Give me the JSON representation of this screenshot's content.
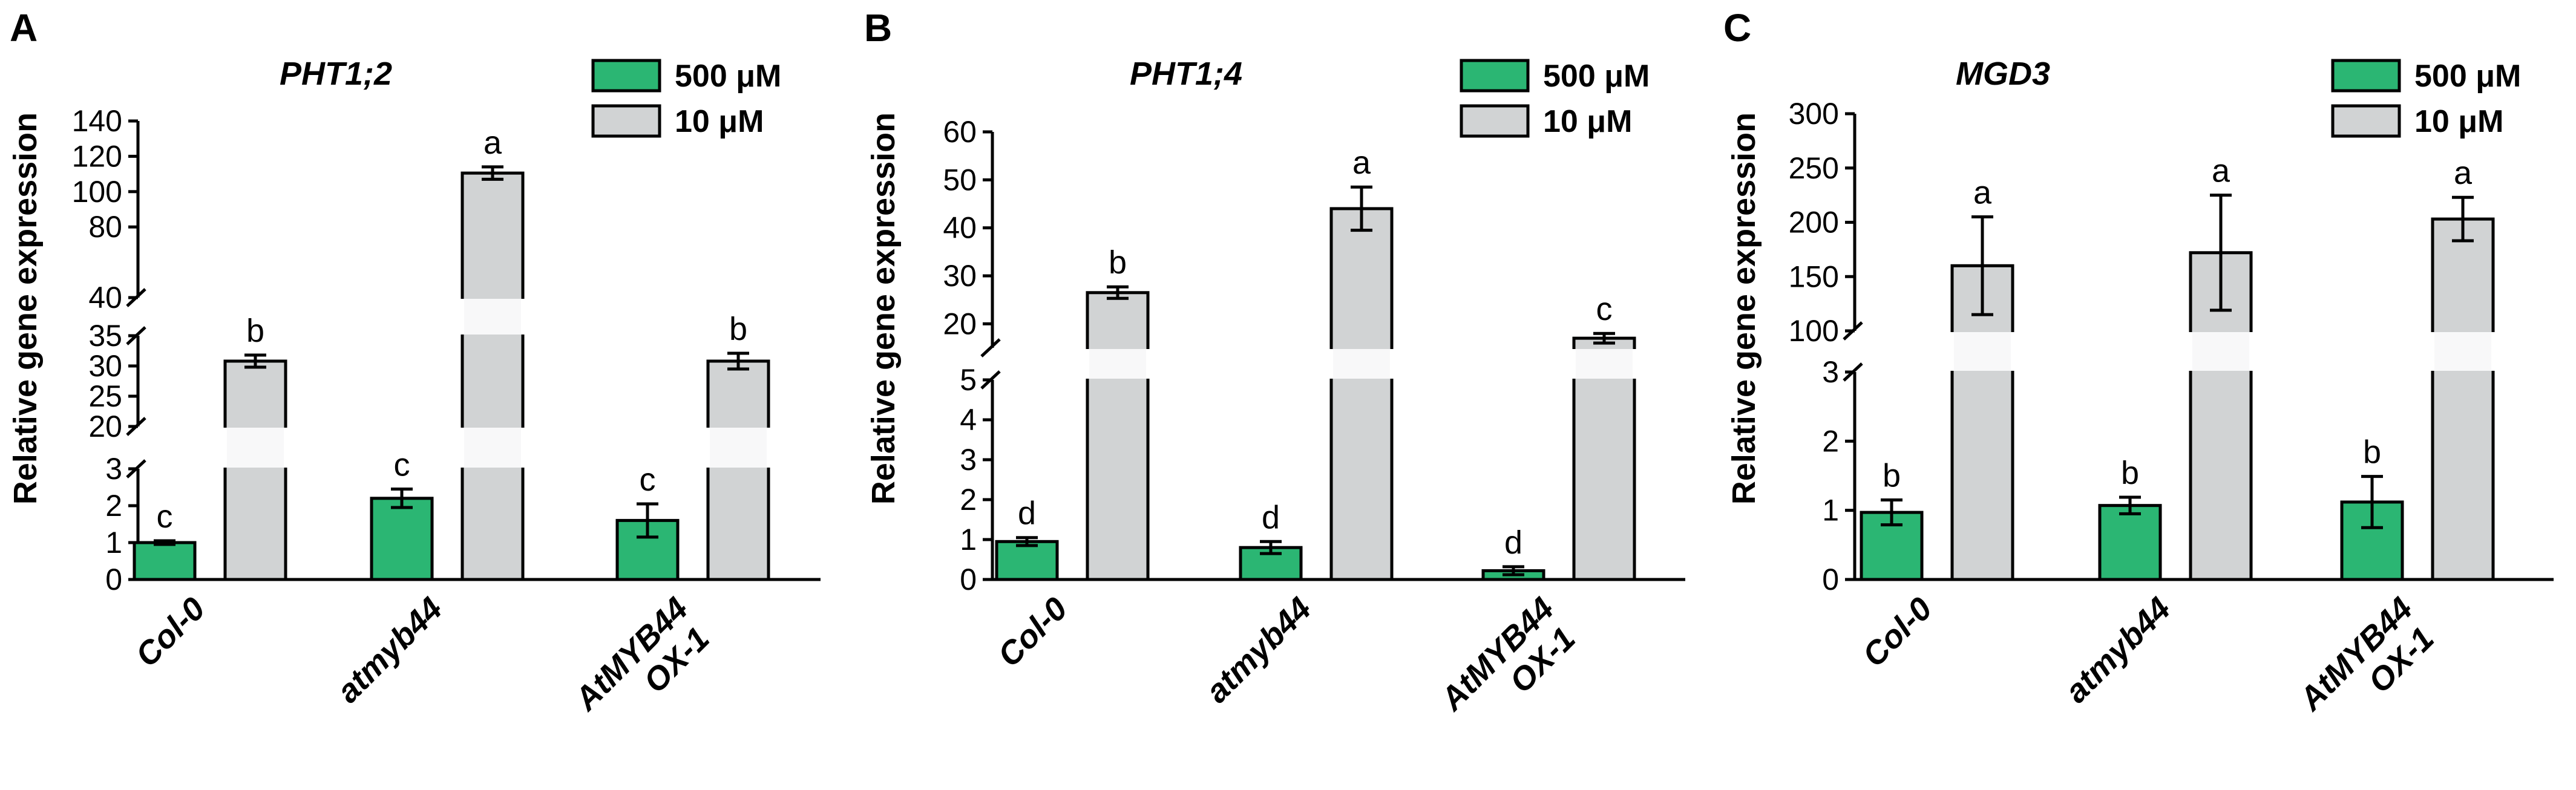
{
  "colors": {
    "high_pi": "#2bb673",
    "low_pi": "#d1d3d4",
    "stroke": "#000000"
  },
  "chart_data": [
    {
      "panel": "A",
      "type": "bar",
      "title": "PHT1;2",
      "ylabel": "Relative gene expression",
      "categories": [
        "Col-0",
        "atmyb44",
        "AtMYB44 OX-1"
      ],
      "series": [
        {
          "name": "500 μM",
          "values": [
            1.0,
            2.2,
            1.6
          ],
          "errors": [
            0.05,
            0.25,
            0.45
          ],
          "sig": [
            "c",
            "c",
            "c"
          ]
        },
        {
          "name": "10 μM",
          "values": [
            30.8,
            110.5,
            30.8
          ],
          "errors": [
            1.0,
            3.5,
            1.3
          ],
          "sig": [
            "b",
            "a",
            "b"
          ]
        }
      ],
      "y_segments": [
        {
          "range": [
            0,
            3
          ],
          "ticks": [
            0,
            1,
            2,
            3
          ]
        },
        {
          "range": [
            20,
            35
          ],
          "ticks": [
            20,
            25,
            30,
            35
          ]
        },
        {
          "range": [
            40,
            140
          ],
          "ticks": [
            40,
            80,
            100,
            120,
            140
          ]
        }
      ],
      "legend": "top-right"
    },
    {
      "panel": "B",
      "type": "bar",
      "title": "PHT1;4",
      "ylabel": "Relative gene expression",
      "categories": [
        "Col-0",
        "atmyb44",
        "AtMYB44 OX-1"
      ],
      "series": [
        {
          "name": "500 μM",
          "values": [
            0.95,
            0.8,
            0.22
          ],
          "errors": [
            0.1,
            0.15,
            0.1
          ],
          "sig": [
            "d",
            "d",
            "d"
          ]
        },
        {
          "name": "10 μM",
          "values": [
            26.5,
            44.0,
            17.0
          ],
          "errors": [
            1.2,
            4.5,
            1.0
          ],
          "sig": [
            "b",
            "a",
            "c"
          ]
        }
      ],
      "y_segments": [
        {
          "range": [
            0,
            5
          ],
          "ticks": [
            0,
            1,
            2,
            3,
            4,
            5
          ]
        },
        {
          "range": [
            15,
            60
          ],
          "ticks": [
            20,
            30,
            40,
            50,
            60
          ]
        }
      ],
      "legend": "top-right"
    },
    {
      "panel": "C",
      "type": "bar",
      "title": "MGD3",
      "ylabel": "Relative gene expression",
      "categories": [
        "Col-0",
        "atmyb44",
        "AtMYB44 OX-1"
      ],
      "series": [
        {
          "name": "500 μM",
          "values": [
            0.97,
            1.07,
            1.12
          ],
          "errors": [
            0.18,
            0.12,
            0.37
          ],
          "sig": [
            "b",
            "b",
            "b"
          ]
        },
        {
          "name": "10 μM",
          "values": [
            160,
            172,
            203
          ],
          "errors": [
            45,
            53,
            20
          ],
          "sig": [
            "a",
            "a",
            "a"
          ]
        }
      ],
      "y_segments": [
        {
          "range": [
            0,
            3
          ],
          "ticks": [
            0,
            1,
            2,
            3
          ]
        },
        {
          "range": [
            100,
            300
          ],
          "ticks": [
            100,
            150,
            200,
            250,
            300
          ]
        }
      ],
      "legend": "top-right"
    }
  ]
}
